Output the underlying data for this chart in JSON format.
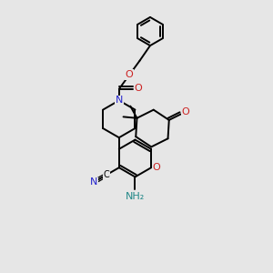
{
  "background_color": "#e6e6e6",
  "bond_color": "#000000",
  "N_color": "#2222cc",
  "O_color": "#cc2222",
  "NH2_color": "#228888",
  "C_color": "#000000",
  "lw": 1.4,
  "figsize": [
    3.0,
    3.0
  ],
  "dpi": 100,
  "xlim": [
    0,
    10
  ],
  "ylim": [
    0,
    10
  ]
}
